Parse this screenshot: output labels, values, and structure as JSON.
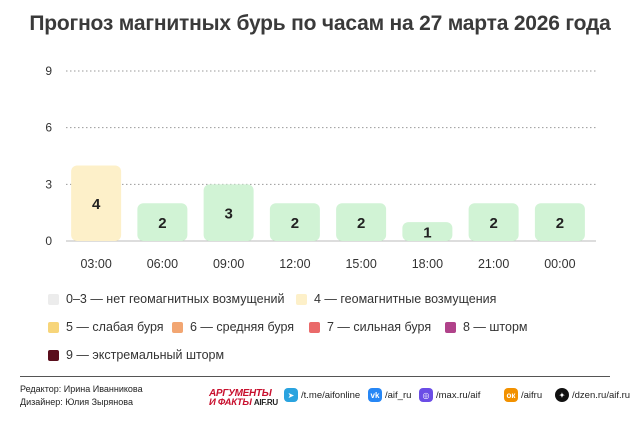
{
  "title": "Прогноз магнитных бурь по часам на 27 марта 2026 года",
  "chart_data": {
    "type": "bar",
    "categories": [
      "03:00",
      "06:00",
      "09:00",
      "12:00",
      "15:00",
      "18:00",
      "21:00",
      "00:00"
    ],
    "values": [
      4,
      2,
      3,
      2,
      2,
      1,
      2,
      2
    ],
    "yticks": [
      0,
      3,
      6,
      9
    ],
    "ylim": [
      0,
      9
    ],
    "grid": "dotted horizontal",
    "bar_colors": [
      "#fdf0c9",
      "#d1f3d5",
      "#d1f3d5",
      "#d1f3d5",
      "#d1f3d5",
      "#d1f3d5",
      "#d1f3d5",
      "#d1f3d5"
    ]
  },
  "legend": [
    {
      "label": "0–3 — нет геомагнитных возмущений",
      "color": "#ececec"
    },
    {
      "label": "4 — геомагнитные возмущения",
      "color": "#fdf0c9"
    },
    {
      "label": "5 — слабая буря",
      "color": "#f7d57a"
    },
    {
      "label": "6 — средняя буря",
      "color": "#f2a672"
    },
    {
      "label": "7 — сильная буря",
      "color": "#ea6a6a"
    },
    {
      "label": "8 — шторм",
      "color": "#b0428a"
    },
    {
      "label": "9 — экстремальный шторм",
      "color": "#5a0e1c"
    }
  ],
  "footer": {
    "editor": "Редактор: Ирина Иванникова",
    "designer": "Дизайнер: Юлия Зырянова",
    "logo_line1": "АРГУМЕНТЫ",
    "logo_line2": "И ФАКТЫ",
    "logo_domain": "AIF.RU",
    "links": [
      {
        "icon": "telegram-icon",
        "text": "/t.me/aifonline",
        "color": "#2aa3df"
      },
      {
        "icon": "vk-icon",
        "text": "/aif_ru",
        "color": "#2787f5"
      },
      {
        "icon": "max-icon",
        "text": "/max.ru/aif",
        "color": "#6b4de6"
      },
      {
        "icon": "ok-icon",
        "text": "/aifru",
        "color": "#f29100"
      },
      {
        "icon": "dzen-icon",
        "text": "/dzen.ru/aif.ru",
        "color": "#111111"
      }
    ]
  }
}
